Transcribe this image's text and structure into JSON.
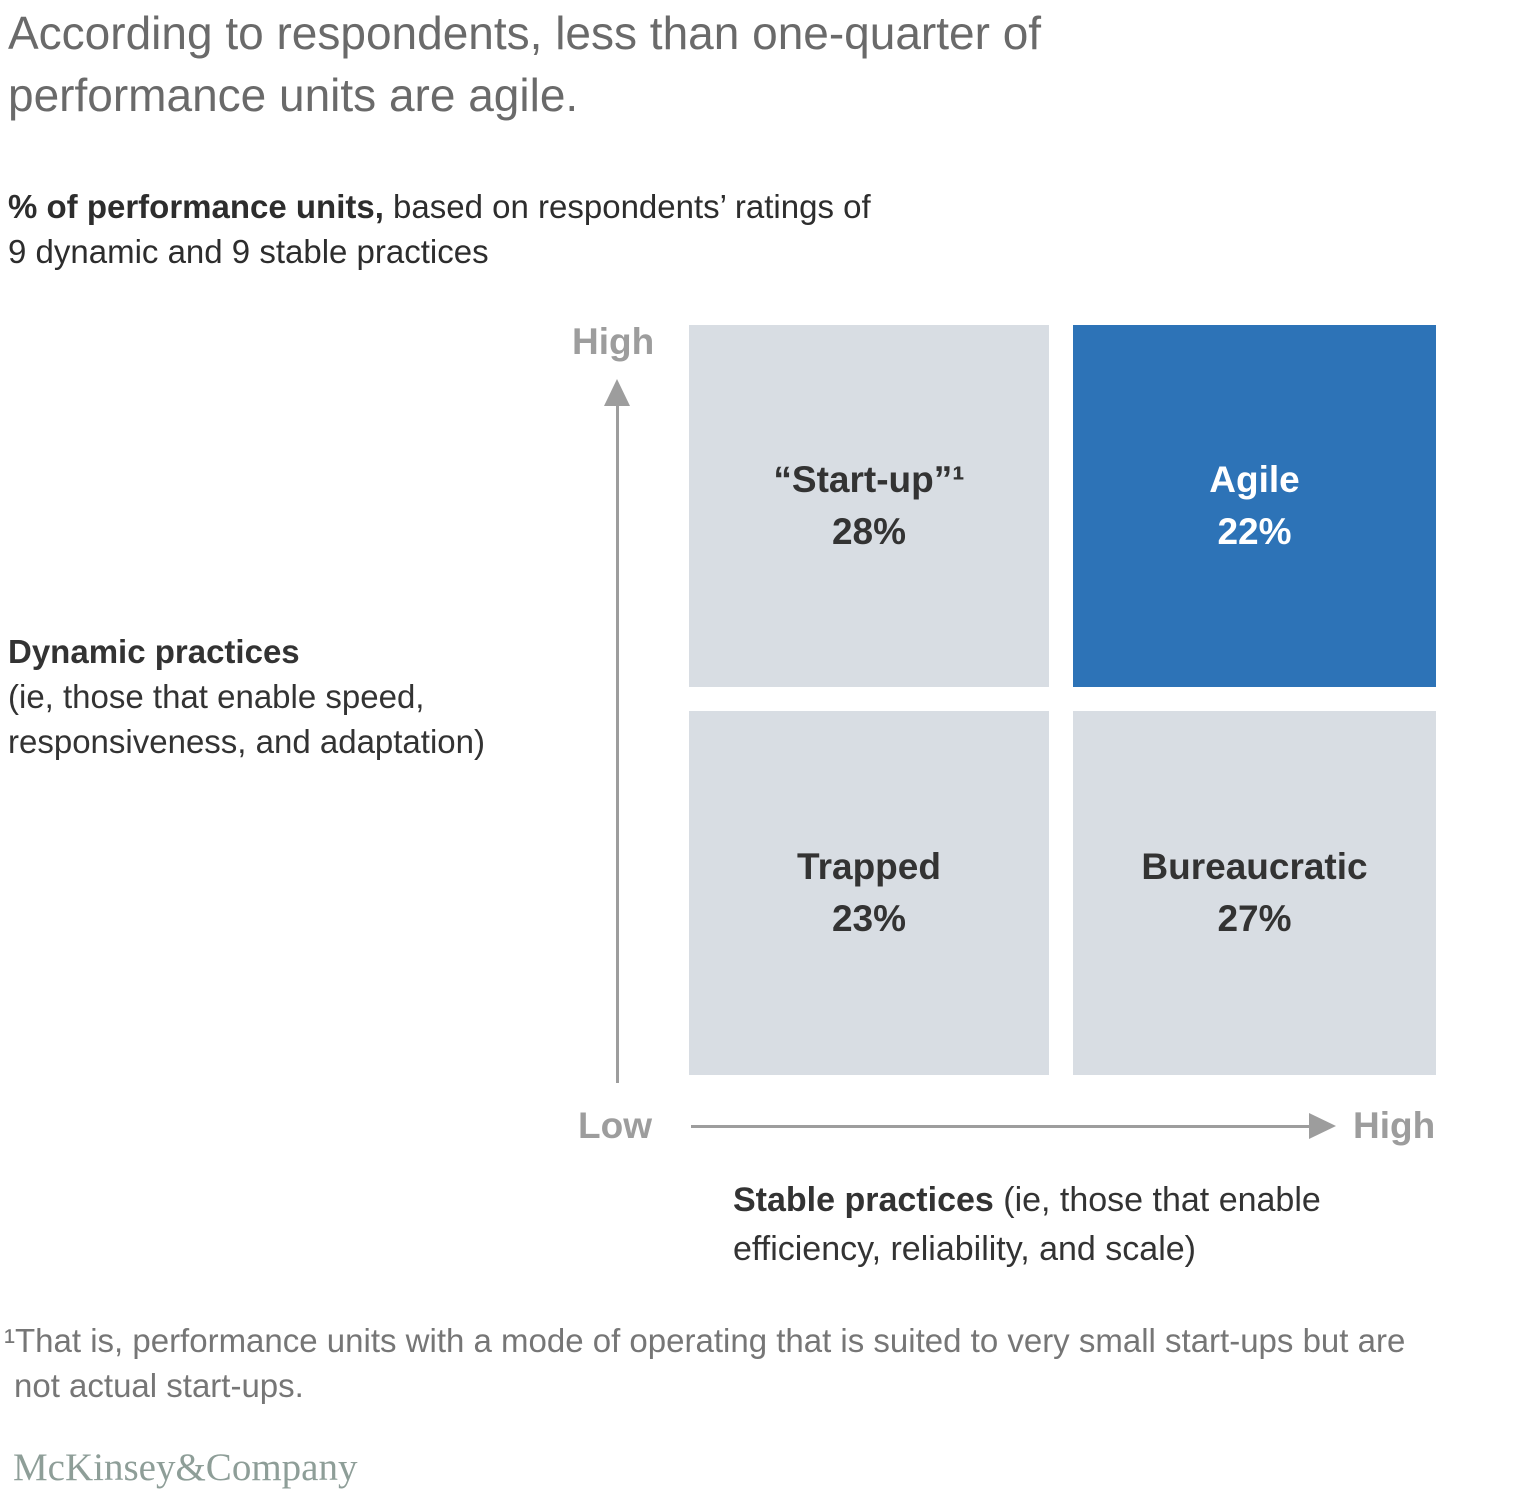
{
  "header": {
    "title_line1": "According to respondents, less than one-quarter of",
    "title_line2": "performance units are agile."
  },
  "subtitle": {
    "lead_bold": "% of performance units,",
    "line1_rest": " based on respondents’ ratings of",
    "line2": "9 dynamic and 9 stable practices"
  },
  "matrix": {
    "quadrants": [
      {
        "id": "startup",
        "label": "“Start-up”¹",
        "value": "28%",
        "bg": "#d8dde3",
        "text_color": "#333333"
      },
      {
        "id": "agile",
        "label": "Agile",
        "value": "22%",
        "bg": "#2d73b7",
        "text_color": "#ffffff"
      },
      {
        "id": "trapped",
        "label": "Trapped",
        "value": "23%",
        "bg": "#d8dde3",
        "text_color": "#333333"
      },
      {
        "id": "bureaucratic",
        "label": "Bureaucratic",
        "value": "27%",
        "bg": "#d8dde3",
        "text_color": "#333333"
      }
    ]
  },
  "axes": {
    "y": {
      "high_label": "High",
      "title_line1": "Dynamic practices",
      "title_line2": "(ie, those that enable speed,",
      "title_line3": "responsiveness, and adaptation)"
    },
    "x": {
      "low_label": "Low",
      "high_label": "High",
      "title_bold": "Stable practices",
      "title_line1_rest": " (ie, those that enable",
      "title_line2": "efficiency, reliability, and scale)"
    }
  },
  "footnote": {
    "line1": "¹That is, performance units with a mode of operating that is suited to very small start-ups but are",
    "line2": "not actual start-ups."
  },
  "logo_text": "McKinsey&Company",
  "colors": {
    "highlight_blue": "#2d73b7",
    "quadrant_gray": "#d8dde3",
    "axis_gray": "#9d9d9d",
    "title_gray": "#6a6a6a",
    "text_dark": "#333333",
    "footnote_gray": "#767676",
    "logo_gray_green": "#8e9e98"
  },
  "chart_data": {
    "type": "heatmap",
    "subtype": "2x2-quadrant-matrix",
    "title": "According to respondents, less than one-quarter of performance units are agile.",
    "subtitle": "% of performance units, based on respondents’ ratings of 9 dynamic and 9 stable practices",
    "xlabel": "Stable practices (ie, those that enable efficiency, reliability, and scale)",
    "ylabel": "Dynamic practices (ie, those that enable speed, responsiveness, and adaptation)",
    "x_range": [
      "Low",
      "High"
    ],
    "y_range": [
      "Low",
      "High"
    ],
    "grid": false,
    "quadrants": [
      {
        "name": "“Start-up”¹",
        "stable": "low",
        "dynamic": "high",
        "value_pct": 28,
        "highlighted": false
      },
      {
        "name": "Agile",
        "stable": "high",
        "dynamic": "high",
        "value_pct": 22,
        "highlighted": true
      },
      {
        "name": "Trapped",
        "stable": "low",
        "dynamic": "low",
        "value_pct": 23,
        "highlighted": false
      },
      {
        "name": "Bureaucratic",
        "stable": "high",
        "dynamic": "low",
        "value_pct": 27,
        "highlighted": false
      }
    ],
    "footnote": "¹That is, performance units with a mode of operating that is suited to very small start-ups but are not actual start-ups.",
    "source_brand": "McKinsey&Company"
  }
}
